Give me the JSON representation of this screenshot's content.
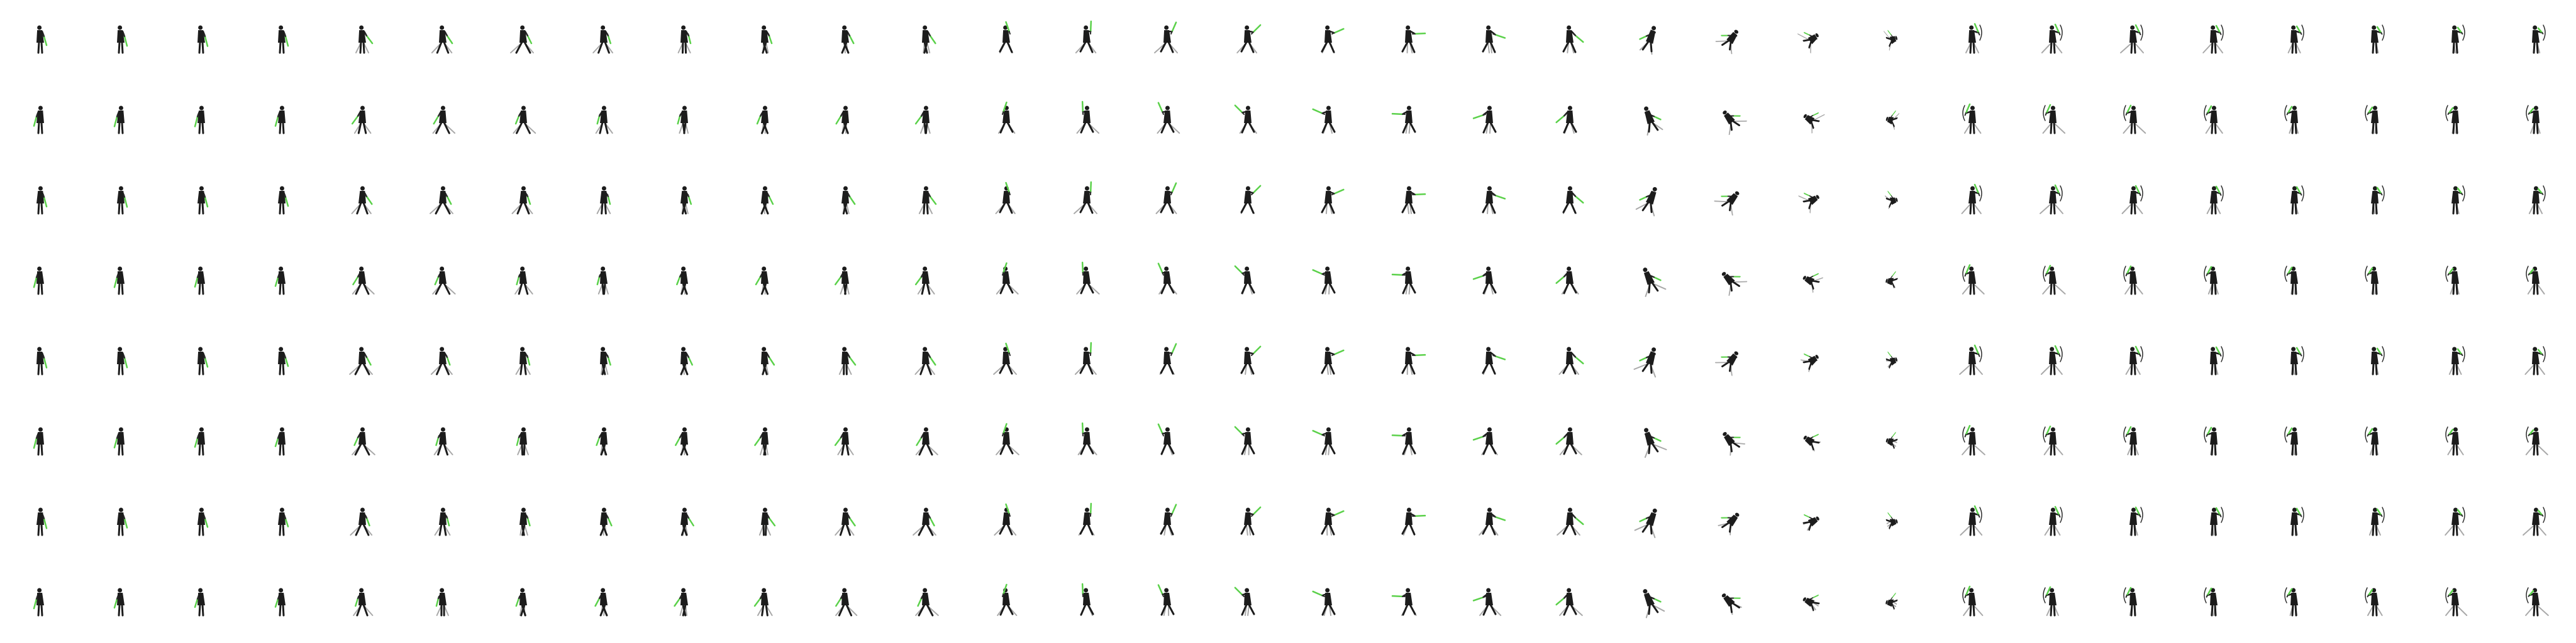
{
  "sprite_sheet": {
    "grid": {
      "columns": 32,
      "rows": 8
    },
    "direction_rows": 8,
    "animations": [
      {
        "name": "idle",
        "frames": 4,
        "pose": "stand"
      },
      {
        "name": "walk",
        "frames": 8,
        "pose": "walk"
      },
      {
        "name": "attack",
        "frames": 8,
        "pose": "strike"
      },
      {
        "name": "death",
        "frames": 4,
        "pose": "fall"
      },
      {
        "name": "ranged",
        "frames": 8,
        "pose": "shoot"
      }
    ],
    "colors": {
      "background": "#ffffff",
      "figure": "#1c1c1c",
      "motion_trail": "#8c8c8c",
      "weapon_glow": "#5bd14a"
    }
  }
}
